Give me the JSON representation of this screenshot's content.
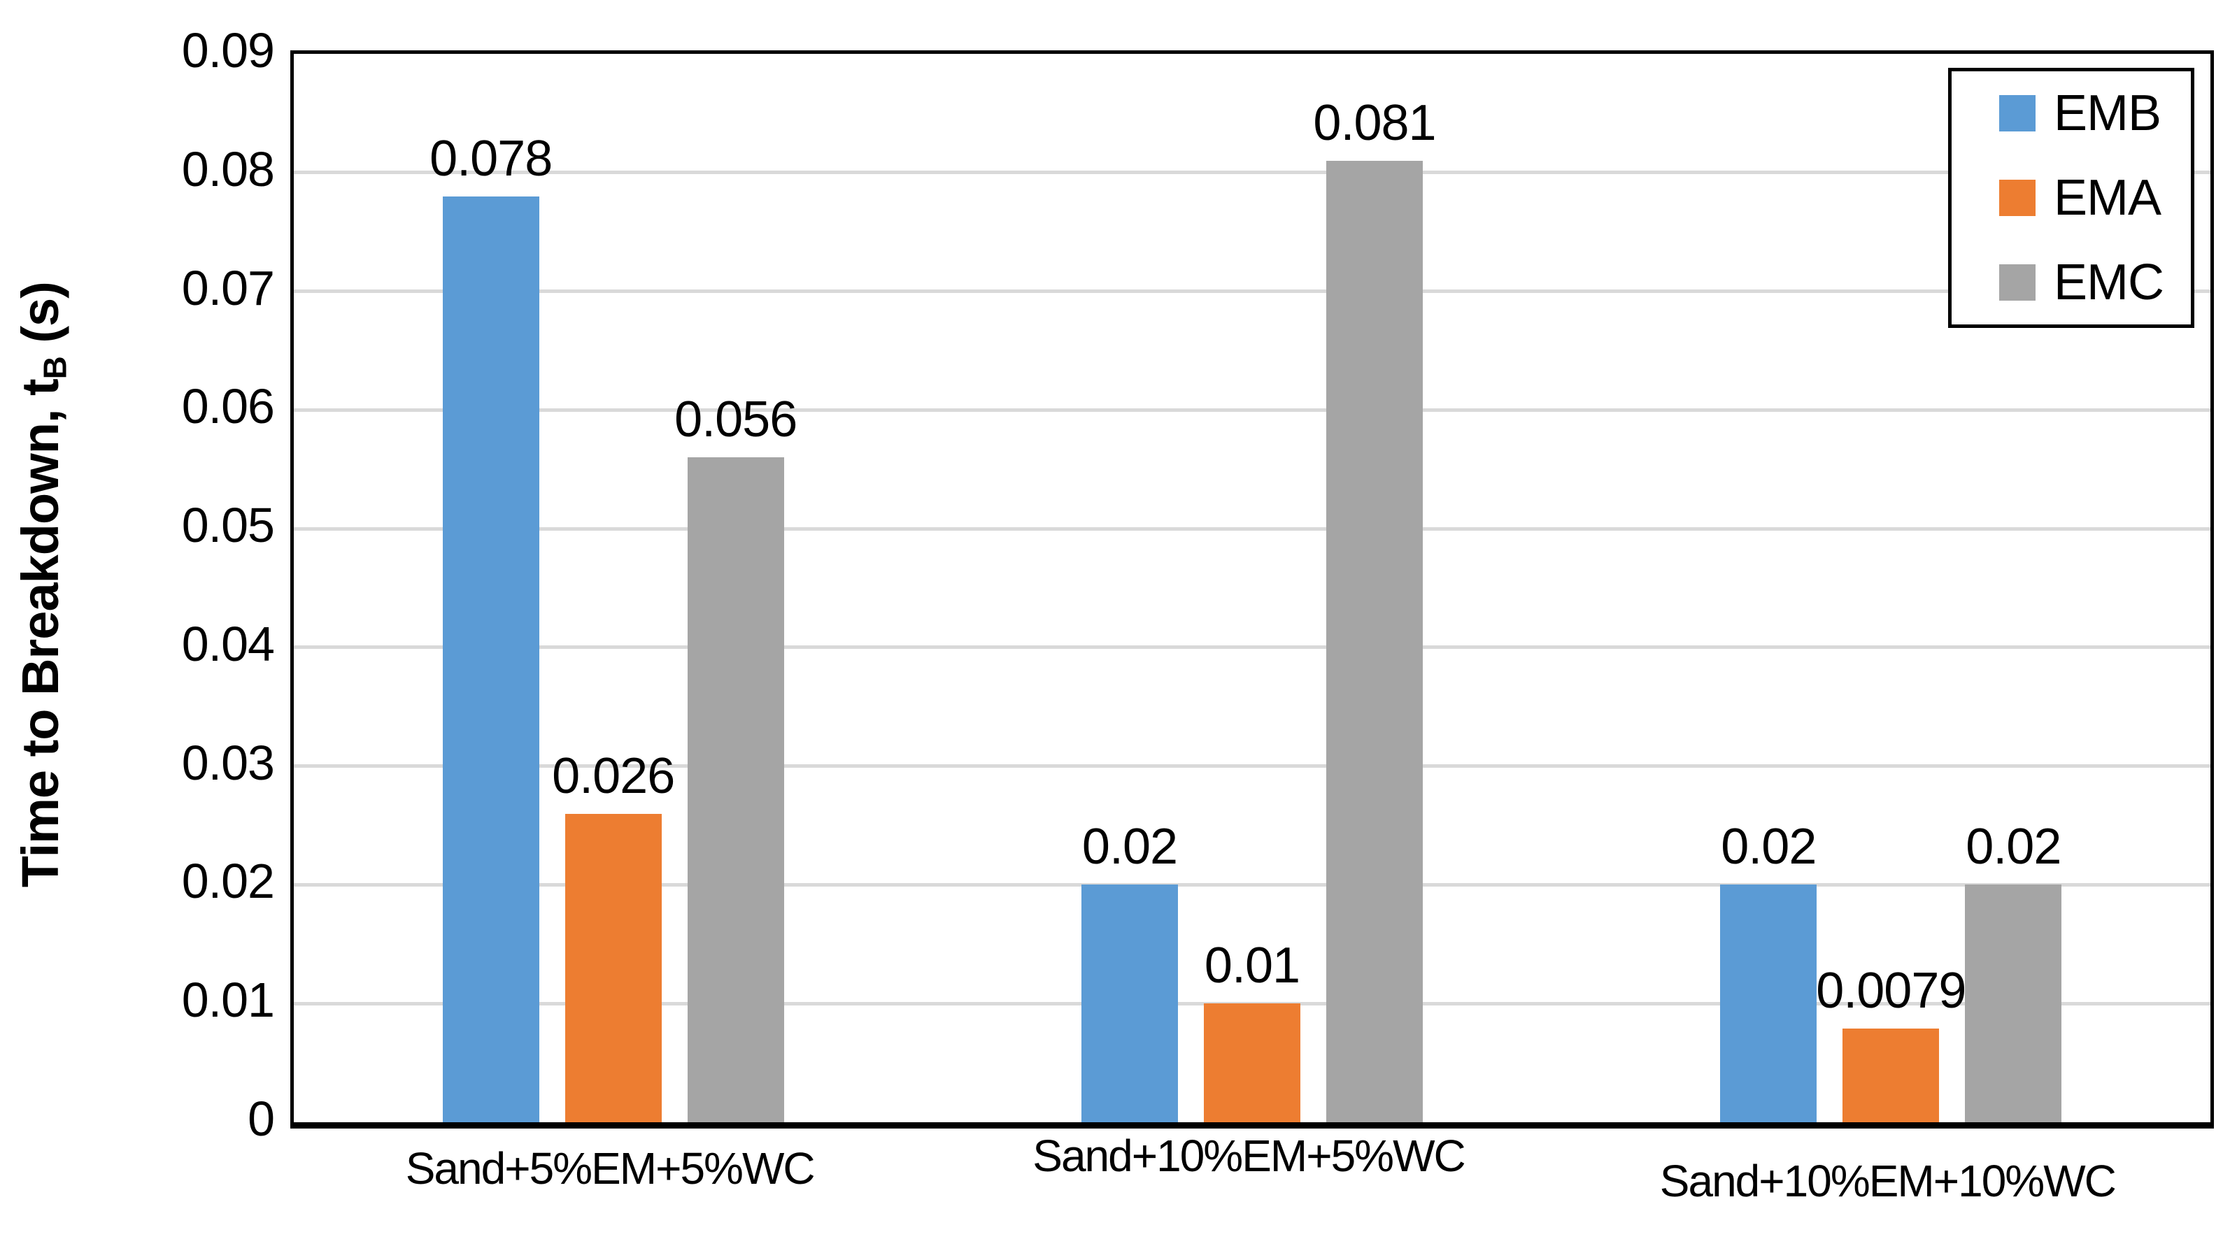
{
  "chart_data": {
    "type": "bar",
    "title": "",
    "ylabel": {
      "prefix": "Time to Breakdown, t",
      "sub": "B",
      "suffix": " (s)"
    },
    "categories": [
      "Sand+5%EM+5%WC",
      "Sand+10%EM+5%WC",
      "Sand+10%EM+10%WC"
    ],
    "series": [
      {
        "name": "EMB",
        "color": "#5B9BD5",
        "values": [
          0.078,
          0.02,
          0.02
        ],
        "labels": [
          "0.078",
          "0.02",
          "0.02"
        ]
      },
      {
        "name": "EMA",
        "color": "#ED7D31",
        "values": [
          0.026,
          0.01,
          0.0079
        ],
        "labels": [
          "0.026",
          "0.01",
          "0.0079"
        ]
      },
      {
        "name": "EMC",
        "color": "#A5A5A5",
        "values": [
          0.056,
          0.081,
          0.02
        ],
        "labels": [
          "0.056",
          "0.081",
          "0.02"
        ]
      }
    ],
    "ylim": [
      0,
      0.09
    ],
    "yticks": [
      0,
      0.01,
      0.02,
      0.03,
      0.04,
      0.05,
      0.06,
      0.07,
      0.08,
      0.09
    ],
    "ytick_labels": [
      "0",
      "0.01",
      "0.02",
      "0.03",
      "0.04",
      "0.05",
      "0.06",
      "0.07",
      "0.08",
      "0.09"
    ],
    "grid": true,
    "legend": {
      "position": "top-right",
      "entries": [
        "EMB",
        "EMA",
        "EMC"
      ]
    },
    "colors": {
      "gridline": "#D9D9D9",
      "axis": "#000000",
      "text": "#000000",
      "background": "#FFFFFF"
    }
  }
}
